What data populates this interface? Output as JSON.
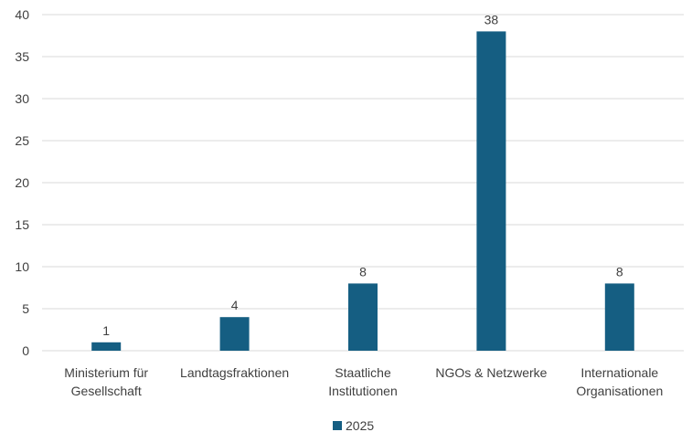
{
  "chart_data": {
    "type": "bar",
    "categories": [
      [
        "Ministerium für",
        "Gesellschaft"
      ],
      [
        "Landtagsfraktionen"
      ],
      [
        "Staatliche",
        "Institutionen"
      ],
      [
        "NGOs & Netzwerke"
      ],
      [
        "Internationale",
        "Organisationen"
      ]
    ],
    "series": [
      {
        "name": "2025",
        "values": [
          1,
          4,
          8,
          38,
          8
        ],
        "color": "#155e82"
      }
    ],
    "ylim": [
      0,
      40
    ],
    "yticks": [
      0,
      5,
      10,
      15,
      20,
      25,
      30,
      35,
      40
    ],
    "grid": true,
    "data_labels": true,
    "legend": "bottom",
    "title": "",
    "xlabel": "",
    "ylabel": ""
  },
  "colors": {
    "grid": "#d9d9d9",
    "text": "#404040",
    "bar": "#155e82"
  }
}
